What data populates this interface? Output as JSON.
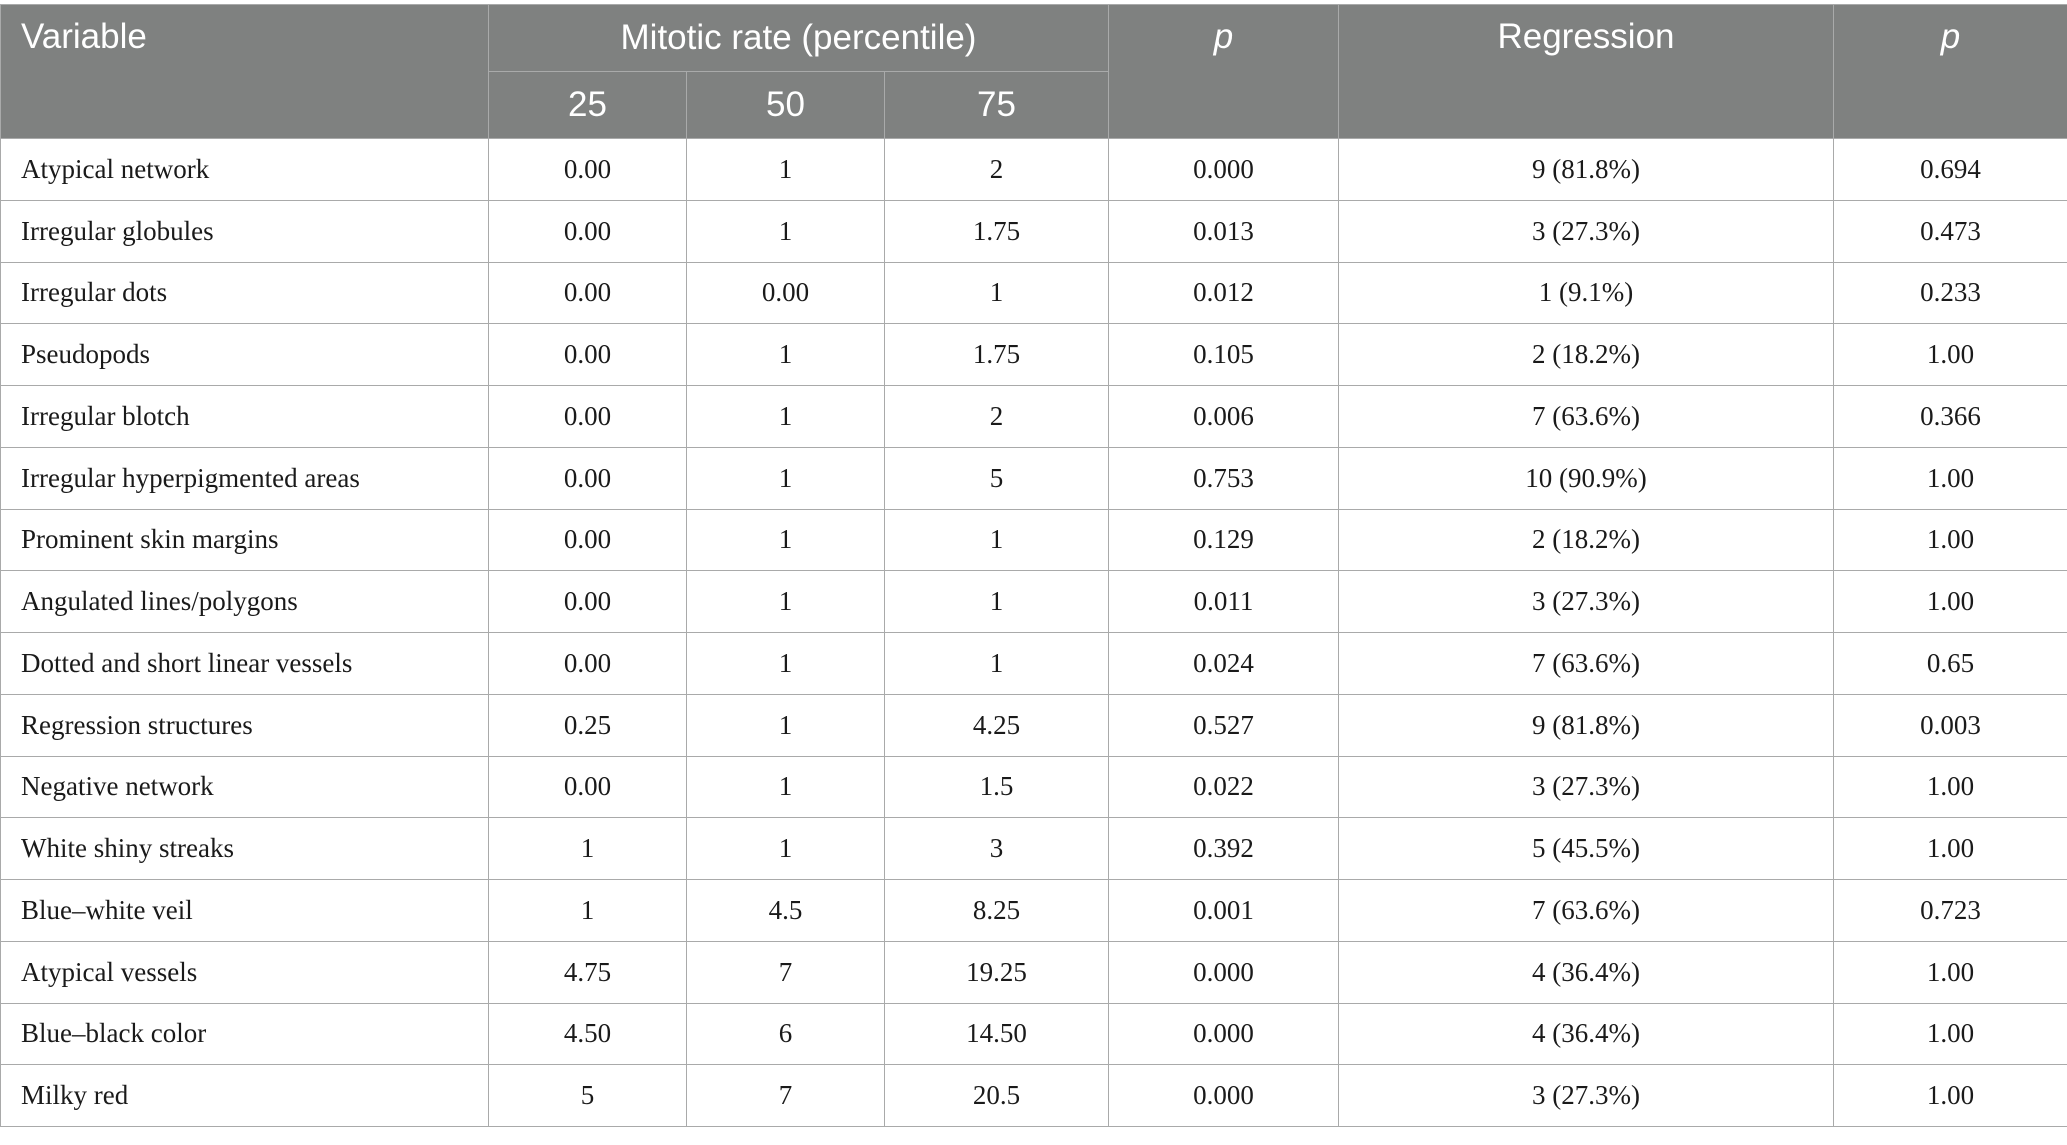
{
  "header": {
    "variable": "Variable",
    "mitotic_rate": "Mitotic rate (percentile)",
    "p_first": "p",
    "regression": "Regression",
    "p_second": "p",
    "percentiles": [
      "25",
      "50",
      "75"
    ]
  },
  "rows": [
    {
      "variable": "Atypical network",
      "p25": "0.00",
      "p50": "1",
      "p75": "2",
      "p1": "0.000",
      "regression": "9 (81.8%)",
      "p2": "0.694"
    },
    {
      "variable": "Irregular globules",
      "p25": "0.00",
      "p50": "1",
      "p75": "1.75",
      "p1": "0.013",
      "regression": "3 (27.3%)",
      "p2": "0.473"
    },
    {
      "variable": "Irregular dots",
      "p25": "0.00",
      "p50": "0.00",
      "p75": "1",
      "p1": "0.012",
      "regression": "1 (9.1%)",
      "p2": "0.233"
    },
    {
      "variable": "Pseudopods",
      "p25": "0.00",
      "p50": "1",
      "p75": "1.75",
      "p1": "0.105",
      "regression": "2 (18.2%)",
      "p2": "1.00"
    },
    {
      "variable": "Irregular blotch",
      "p25": "0.00",
      "p50": "1",
      "p75": "2",
      "p1": "0.006",
      "regression": "7 (63.6%)",
      "p2": "0.366"
    },
    {
      "variable": "Irregular hyperpigmented areas",
      "p25": "0.00",
      "p50": "1",
      "p75": "5",
      "p1": "0.753",
      "regression": "10 (90.9%)",
      "p2": "1.00"
    },
    {
      "variable": "Prominent skin margins",
      "p25": "0.00",
      "p50": "1",
      "p75": "1",
      "p1": "0.129",
      "regression": "2 (18.2%)",
      "p2": "1.00"
    },
    {
      "variable": "Angulated lines/polygons",
      "p25": "0.00",
      "p50": "1",
      "p75": "1",
      "p1": "0.011",
      "regression": "3 (27.3%)",
      "p2": "1.00"
    },
    {
      "variable": "Dotted and short linear vessels",
      "p25": "0.00",
      "p50": "1",
      "p75": "1",
      "p1": "0.024",
      "regression": "7 (63.6%)",
      "p2": "0.65"
    },
    {
      "variable": "Regression structures",
      "p25": "0.25",
      "p50": "1",
      "p75": "4.25",
      "p1": "0.527",
      "regression": "9 (81.8%)",
      "p2": "0.003"
    },
    {
      "variable": "Negative network",
      "p25": "0.00",
      "p50": "1",
      "p75": "1.5",
      "p1": "0.022",
      "regression": "3 (27.3%)",
      "p2": "1.00"
    },
    {
      "variable": "White shiny streaks",
      "p25": "1",
      "p50": "1",
      "p75": "3",
      "p1": "0.392",
      "regression": "5 (45.5%)",
      "p2": "1.00"
    },
    {
      "variable": "Blue–white veil",
      "p25": "1",
      "p50": "4.5",
      "p75": "8.25",
      "p1": "0.001",
      "regression": "7 (63.6%)",
      "p2": "0.723"
    },
    {
      "variable": "Atypical vessels",
      "p25": "4.75",
      "p50": "7",
      "p75": "19.25",
      "p1": "0.000",
      "regression": "4 (36.4%)",
      "p2": "1.00"
    },
    {
      "variable": "Blue–black color",
      "p25": "4.50",
      "p50": "6",
      "p75": "14.50",
      "p1": "0.000",
      "regression": "4 (36.4%)",
      "p2": "1.00"
    },
    {
      "variable": "Milky red",
      "p25": "5",
      "p50": "7",
      "p75": "20.5",
      "p1": "0.000",
      "regression": "3 (27.3%)",
      "p2": "1.00"
    }
  ]
}
